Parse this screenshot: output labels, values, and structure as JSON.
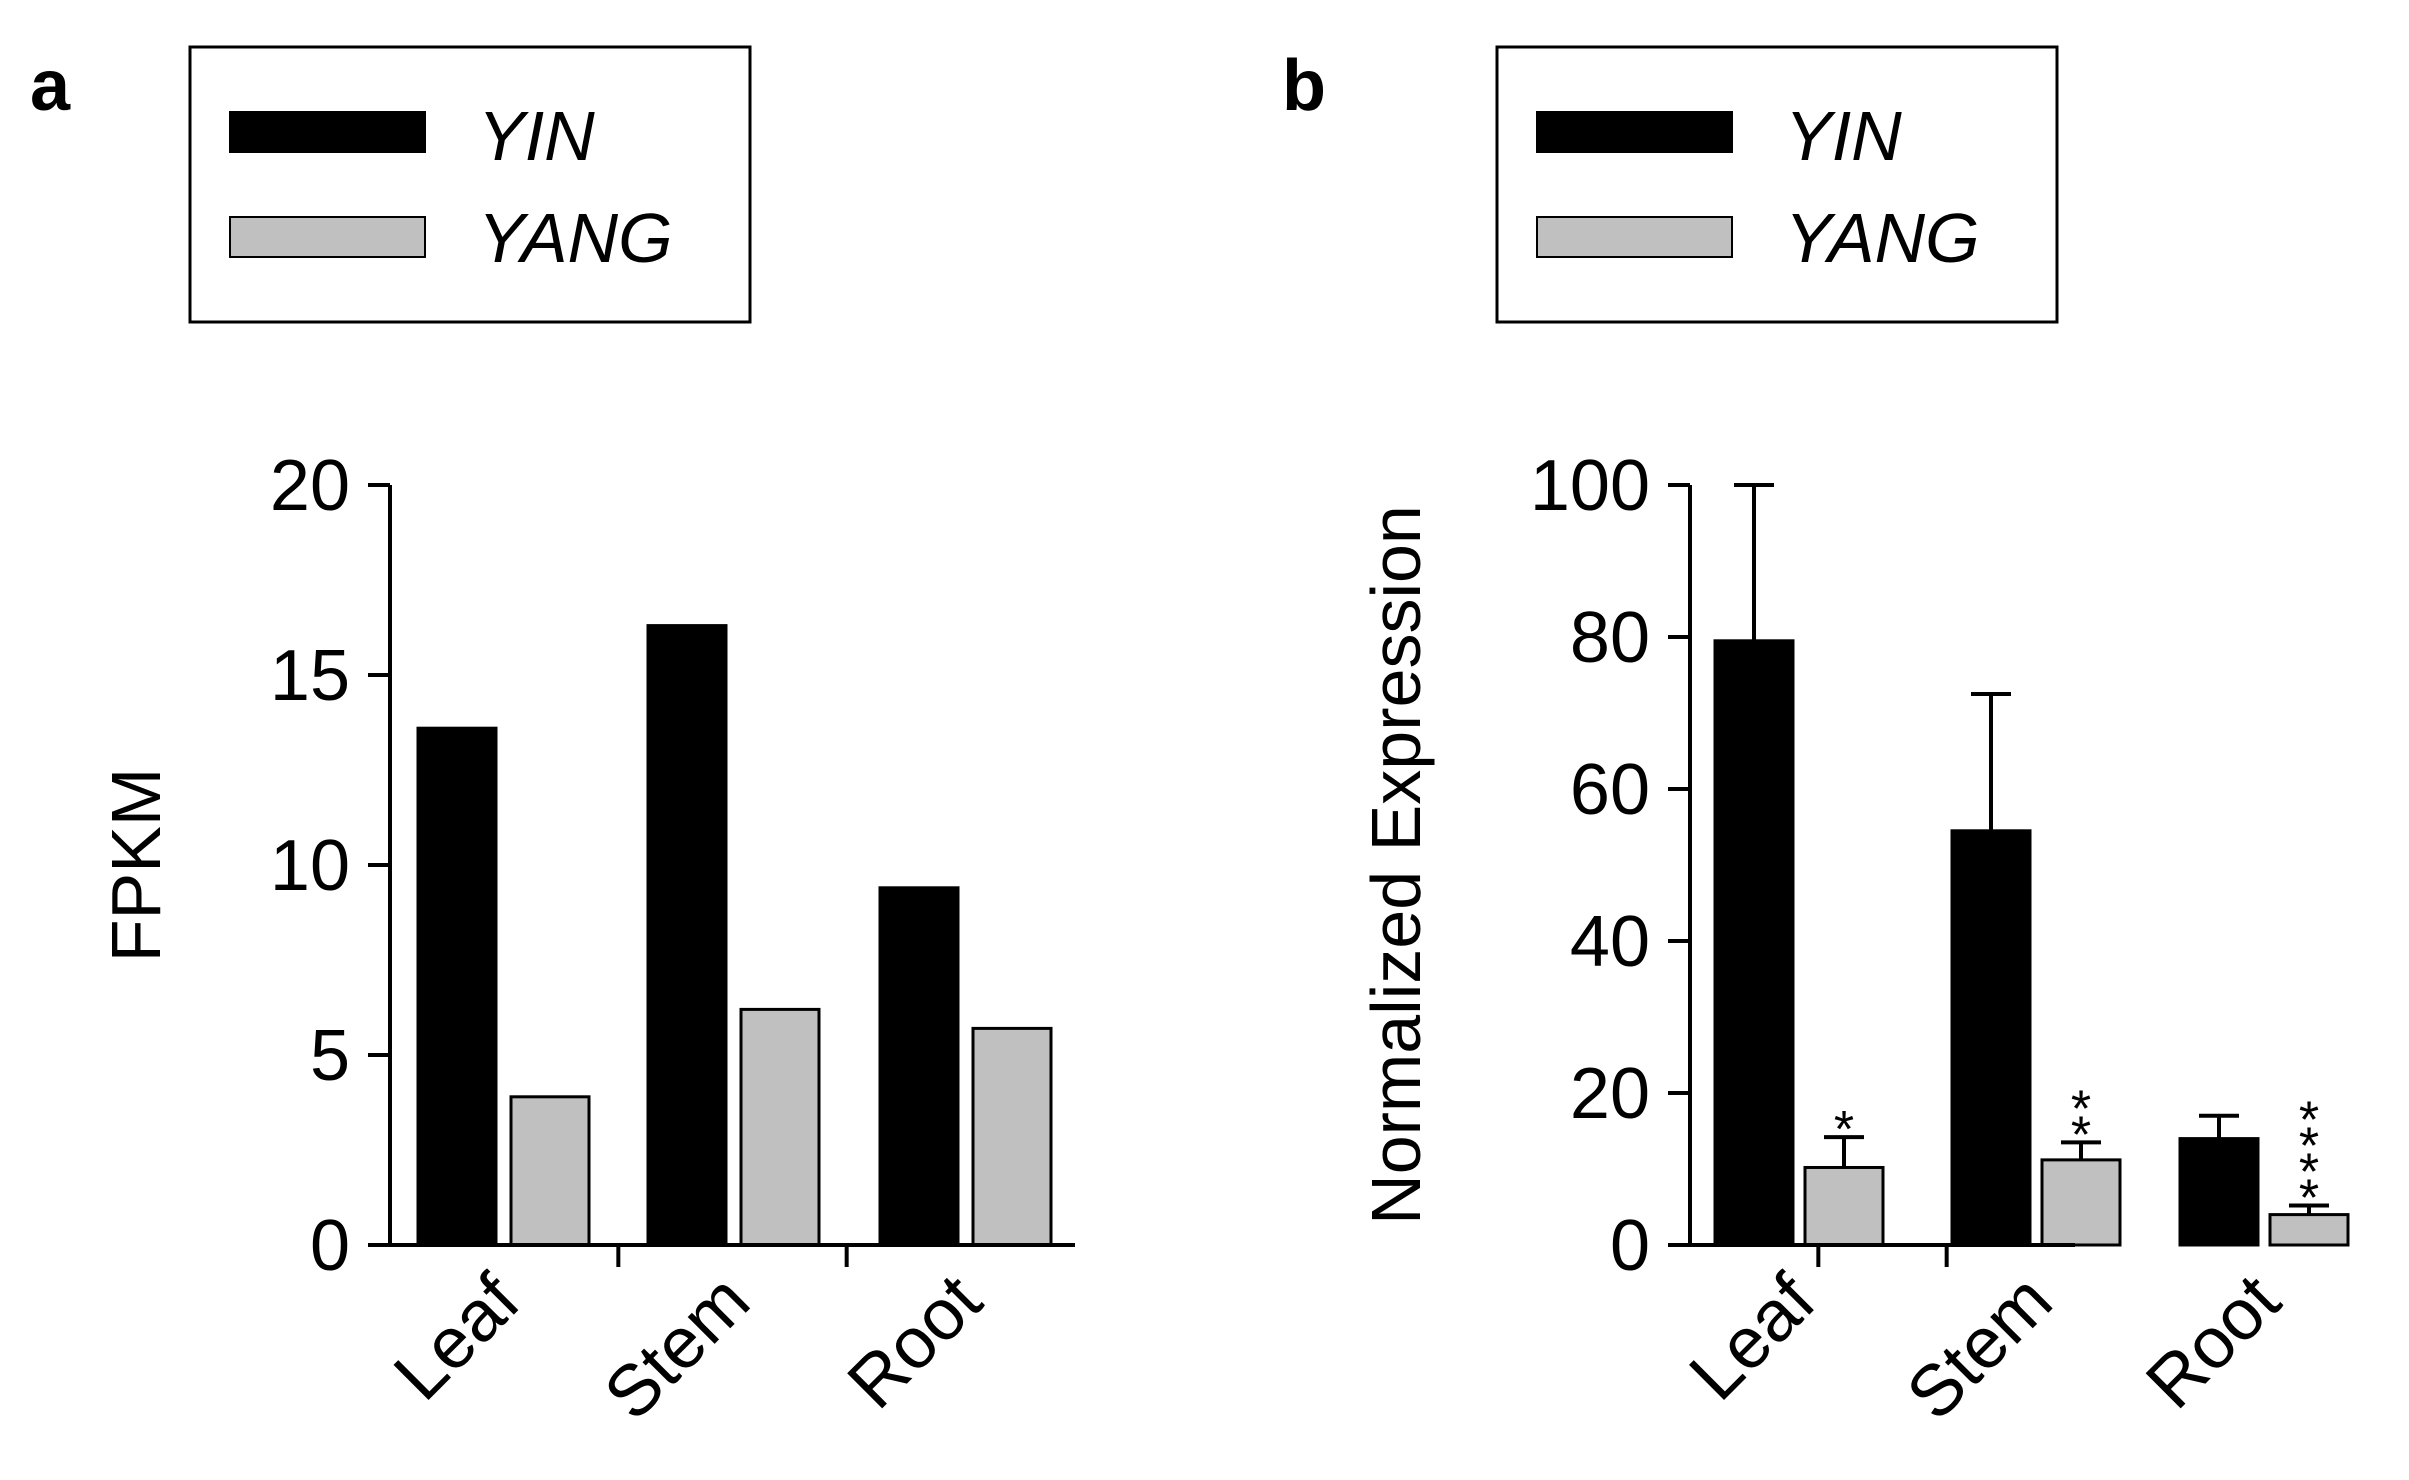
{
  "chart_data": [
    {
      "panel": "a",
      "type": "bar",
      "categories": [
        "Leaf",
        "Stem",
        "Root"
      ],
      "series": [
        {
          "name": "YIN",
          "color": "#000000",
          "values": [
            13.6,
            16.3,
            9.4
          ]
        },
        {
          "name": "YANG",
          "color": "#c0c0c0",
          "values": [
            3.9,
            6.2,
            5.7
          ]
        }
      ],
      "ylabel": "FPKM",
      "xlabel": "",
      "ylim": [
        0,
        20
      ],
      "yticks": [
        "0",
        "5",
        "10",
        "15",
        "20"
      ],
      "legend": "top-left"
    },
    {
      "panel": "b",
      "type": "bar",
      "categories": [
        "Leaf",
        "Stem",
        "Root"
      ],
      "series": [
        {
          "name": "YIN",
          "color": "#000000",
          "values": [
            79.5,
            54.5,
            14.0
          ],
          "errors": [
            20.5,
            18.0,
            3.0
          ]
        },
        {
          "name": "YANG",
          "color": "#c0c0c0",
          "values": [
            10.2,
            11.2,
            4.0
          ],
          "errors": [
            4.0,
            2.3,
            1.2
          ]
        }
      ],
      "significance": [
        "*",
        "**",
        "****"
      ],
      "ylabel": "Normalized Expression",
      "xlabel": "",
      "ylim": [
        0,
        100
      ],
      "yticks": [
        "0",
        "20",
        "40",
        "60",
        "80",
        "100"
      ],
      "legend": "top-left"
    }
  ]
}
